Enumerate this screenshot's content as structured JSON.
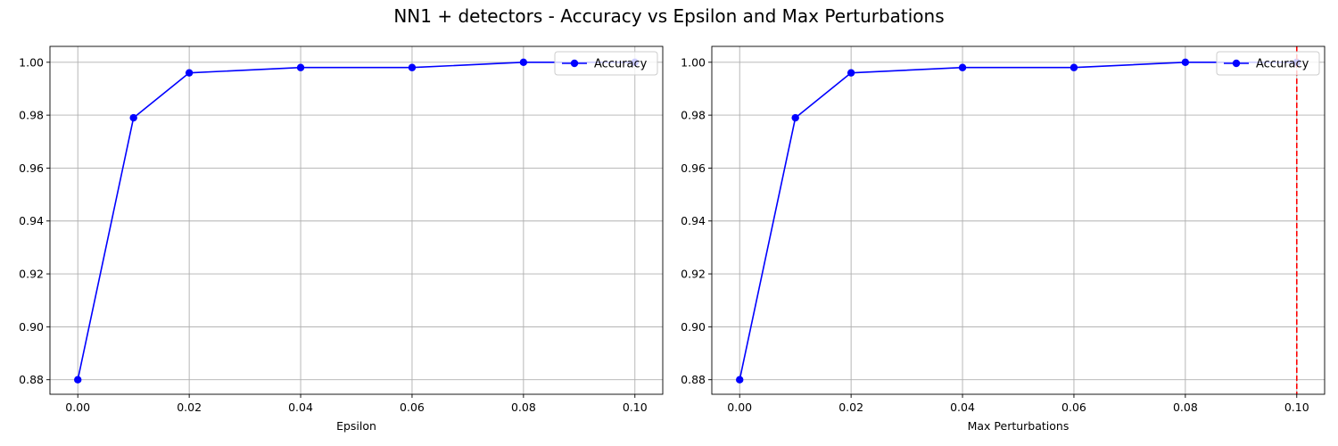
{
  "figure": {
    "title": "NN1 + detectors - Accuracy vs Epsilon and Max Perturbations"
  },
  "colors": {
    "line": "#0000ff",
    "grid": "#b0b0b0",
    "threshold": "#ff0000"
  },
  "chart_data": [
    {
      "type": "line",
      "title": "",
      "xlabel": "Epsilon",
      "ylabel": "",
      "x": [
        0.0,
        0.01,
        0.02,
        0.04,
        0.06,
        0.08,
        0.1
      ],
      "series": [
        {
          "name": "Accuracy",
          "values": [
            0.88,
            0.979,
            0.996,
            0.998,
            0.998,
            1.0,
            1.0
          ],
          "color": "#0000ff",
          "marker": "circle"
        }
      ],
      "xlim": [
        -0.005,
        0.105
      ],
      "ylim": [
        0.8745,
        1.006
      ],
      "xticks": [
        "0.00",
        "0.02",
        "0.04",
        "0.06",
        "0.08",
        "0.10"
      ],
      "yticks": [
        "0.88",
        "0.90",
        "0.92",
        "0.94",
        "0.96",
        "0.98",
        "1.00"
      ],
      "grid": true,
      "legend": "upper right"
    },
    {
      "type": "line",
      "title": "",
      "xlabel": "Max Perturbations",
      "ylabel": "",
      "x": [
        0.0,
        0.01,
        0.02,
        0.04,
        0.06,
        0.08,
        0.1
      ],
      "series": [
        {
          "name": "Accuracy",
          "values": [
            0.88,
            0.979,
            0.996,
            0.998,
            0.998,
            1.0,
            1.0
          ],
          "color": "#0000ff",
          "marker": "circle"
        }
      ],
      "xlim": [
        -0.005,
        0.105
      ],
      "ylim": [
        0.8745,
        1.006
      ],
      "xticks": [
        "0.00",
        "0.02",
        "0.04",
        "0.06",
        "0.08",
        "0.10"
      ],
      "yticks": [
        "0.88",
        "0.90",
        "0.92",
        "0.94",
        "0.96",
        "0.98",
        "1.00"
      ],
      "grid": true,
      "legend": "upper right",
      "vline": {
        "x": 0.1,
        "style": "dashed",
        "color": "#ff0000"
      }
    }
  ]
}
